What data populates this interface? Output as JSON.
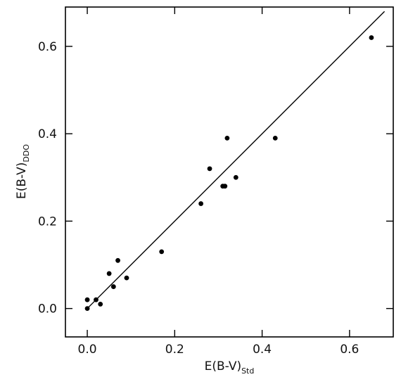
{
  "chart_data": {
    "type": "scatter",
    "xlabel": "E(B-V)",
    "xlabel_subscript": "Std",
    "ylabel": "E(B-V)",
    "ylabel_subscript": "DDO",
    "xlim": [
      -0.05,
      0.7
    ],
    "ylim": [
      -0.065,
      0.69
    ],
    "x_ticks": [
      0.0,
      0.2,
      0.4,
      0.6
    ],
    "y_ticks": [
      0.0,
      0.2,
      0.4,
      0.6
    ],
    "x_tick_labels": [
      "0.0",
      "0.2",
      "0.4",
      "0.6"
    ],
    "y_tick_labels": [
      "0.0",
      "0.2",
      "0.4",
      "0.6"
    ],
    "grid": false,
    "reference_line": {
      "type": "one-to-one",
      "from": [
        0.0,
        0.0
      ],
      "to": [
        0.68,
        0.68
      ]
    },
    "points": [
      {
        "x": 0.0,
        "y": 0.0
      },
      {
        "x": 0.0,
        "y": 0.02
      },
      {
        "x": 0.02,
        "y": 0.02
      },
      {
        "x": 0.03,
        "y": 0.01
      },
      {
        "x": 0.05,
        "y": 0.08
      },
      {
        "x": 0.06,
        "y": 0.05
      },
      {
        "x": 0.07,
        "y": 0.11
      },
      {
        "x": 0.09,
        "y": 0.07
      },
      {
        "x": 0.17,
        "y": 0.13
      },
      {
        "x": 0.26,
        "y": 0.24
      },
      {
        "x": 0.28,
        "y": 0.32
      },
      {
        "x": 0.31,
        "y": 0.28
      },
      {
        "x": 0.315,
        "y": 0.28
      },
      {
        "x": 0.32,
        "y": 0.39
      },
      {
        "x": 0.34,
        "y": 0.3
      },
      {
        "x": 0.43,
        "y": 0.39
      },
      {
        "x": 0.65,
        "y": 0.62
      }
    ]
  }
}
